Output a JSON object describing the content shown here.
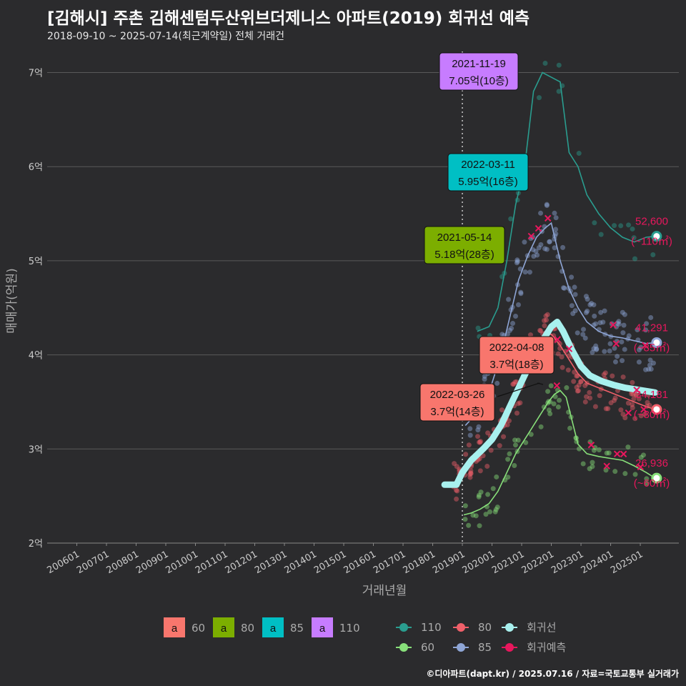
{
  "header": {
    "title": "[김해시] 주촌 김해센텀두산위브더제니스 아파트(2019) 회귀선 예측",
    "subtitle": "2018-09-10 ~ 2025-07-14(최근계약일) 전체 거래건"
  },
  "credit": "©디아파트(dapt.kr) / 2025.07.16 / 자료=국토교통부 실거래가",
  "colors": {
    "background": "#2b2b2d",
    "grid": "#5a5a5a",
    "s60": "#88e07a",
    "s80": "#f0606a",
    "s85": "#8fa6d6",
    "s110": "#2a9d8f",
    "regression": "#a8f0ee",
    "forecast": "#e8175d",
    "box60": "#f8766d",
    "box80": "#7cae00",
    "box85": "#00bfc4",
    "box110": "#c77cff"
  },
  "chart_data": {
    "type": "line",
    "title": "[김해시] 주촌 김해센텀두산위브더제니스 아파트(2019) 회귀선 예측",
    "xlabel": "거래년월",
    "ylabel": "매매가(억원)",
    "x_ticks": [
      "200601",
      "200701",
      "200801",
      "200901",
      "201001",
      "201101",
      "201201",
      "201301",
      "201401",
      "201501",
      "201601",
      "201701",
      "201801",
      "201901",
      "202001",
      "202101",
      "202201",
      "202301",
      "202401",
      "202501"
    ],
    "y_ticks": [
      "2억",
      "3억",
      "4억",
      "5억",
      "6억",
      "7억"
    ],
    "ylim": [
      2,
      7.3
    ],
    "xlim": [
      2005.0,
      2026.3
    ],
    "grid": true,
    "vline_date": "2019-01",
    "series": [
      {
        "name": "60",
        "points": [
          [
            2019.05,
            2.3
          ],
          [
            2019.3,
            2.32
          ],
          [
            2019.6,
            2.36
          ],
          [
            2019.9,
            2.42
          ],
          [
            2020.2,
            2.55
          ],
          [
            2020.5,
            2.75
          ],
          [
            2020.8,
            2.95
          ],
          [
            2021.0,
            3.05
          ],
          [
            2021.3,
            3.2
          ],
          [
            2021.6,
            3.35
          ],
          [
            2021.9,
            3.5
          ],
          [
            2022.1,
            3.58
          ],
          [
            2022.3,
            3.62
          ],
          [
            2022.5,
            3.55
          ],
          [
            2022.7,
            3.3
          ],
          [
            2022.9,
            3.05
          ],
          [
            2023.2,
            2.95
          ],
          [
            2023.6,
            2.92
          ],
          [
            2024.0,
            2.9
          ],
          [
            2024.4,
            2.88
          ],
          [
            2024.8,
            2.82
          ],
          [
            2025.2,
            2.75
          ],
          [
            2025.5,
            2.69
          ]
        ]
      },
      {
        "name": "80",
        "points": [
          [
            2018.7,
            2.62
          ],
          [
            2019.0,
            2.8
          ],
          [
            2019.3,
            2.9
          ],
          [
            2019.6,
            2.98
          ],
          [
            2019.9,
            3.05
          ],
          [
            2020.2,
            3.15
          ],
          [
            2020.5,
            3.3
          ],
          [
            2020.8,
            3.55
          ],
          [
            2021.1,
            3.85
          ],
          [
            2021.4,
            4.1
          ],
          [
            2021.7,
            4.2
          ],
          [
            2022.0,
            4.22
          ],
          [
            2022.3,
            4.1
          ],
          [
            2022.6,
            3.95
          ],
          [
            2022.9,
            3.8
          ],
          [
            2023.2,
            3.7
          ],
          [
            2023.6,
            3.65
          ],
          [
            2024.0,
            3.6
          ],
          [
            2024.4,
            3.55
          ],
          [
            2024.8,
            3.5
          ],
          [
            2025.2,
            3.45
          ],
          [
            2025.5,
            3.42
          ]
        ]
      },
      {
        "name": "85",
        "points": [
          [
            2019.1,
            3.25
          ],
          [
            2019.4,
            3.35
          ],
          [
            2019.7,
            3.5
          ],
          [
            2020.0,
            3.7
          ],
          [
            2020.3,
            4.0
          ],
          [
            2020.6,
            4.4
          ],
          [
            2020.9,
            4.8
          ],
          [
            2021.2,
            5.05
          ],
          [
            2021.5,
            5.25
          ],
          [
            2021.8,
            5.35
          ],
          [
            2022.0,
            5.4
          ],
          [
            2022.3,
            5.0
          ],
          [
            2022.6,
            4.7
          ],
          [
            2022.9,
            4.5
          ],
          [
            2023.2,
            4.35
          ],
          [
            2023.6,
            4.25
          ],
          [
            2024.0,
            4.2
          ],
          [
            2024.4,
            4.18
          ],
          [
            2024.8,
            4.15
          ],
          [
            2025.2,
            4.12
          ],
          [
            2025.5,
            4.13
          ]
        ]
      },
      {
        "name": "110",
        "points": [
          [
            2019.5,
            4.25
          ],
          [
            2019.9,
            4.3
          ],
          [
            2020.2,
            4.5
          ],
          [
            2020.5,
            5.0
          ],
          [
            2020.8,
            5.6
          ],
          [
            2021.1,
            6.0
          ],
          [
            2021.4,
            6.8
          ],
          [
            2021.7,
            7.0
          ],
          [
            2022.0,
            6.95
          ],
          [
            2022.3,
            6.9
          ],
          [
            2022.6,
            6.15
          ],
          [
            2022.9,
            6.0
          ],
          [
            2023.2,
            5.7
          ],
          [
            2023.6,
            5.5
          ],
          [
            2024.0,
            5.35
          ],
          [
            2024.4,
            5.25
          ],
          [
            2024.8,
            5.2
          ],
          [
            2025.2,
            5.25
          ],
          [
            2025.5,
            5.26
          ]
        ]
      },
      {
        "name": "회귀선",
        "points": [
          [
            2018.4,
            2.62
          ],
          [
            2018.8,
            2.62
          ],
          [
            2019.0,
            2.75
          ],
          [
            2019.3,
            2.88
          ],
          [
            2019.7,
            3.0
          ],
          [
            2020.0,
            3.1
          ],
          [
            2020.3,
            3.25
          ],
          [
            2020.6,
            3.45
          ],
          [
            2020.9,
            3.65
          ],
          [
            2021.2,
            3.85
          ],
          [
            2021.5,
            4.05
          ],
          [
            2021.8,
            4.2
          ],
          [
            2022.0,
            4.3
          ],
          [
            2022.2,
            4.35
          ],
          [
            2022.4,
            4.25
          ],
          [
            2022.7,
            4.05
          ],
          [
            2023.0,
            3.88
          ],
          [
            2023.3,
            3.78
          ],
          [
            2023.7,
            3.72
          ],
          [
            2024.1,
            3.68
          ],
          [
            2024.5,
            3.65
          ],
          [
            2024.9,
            3.63
          ],
          [
            2025.3,
            3.61
          ],
          [
            2025.5,
            3.6
          ]
        ]
      }
    ],
    "forecast_points": [
      {
        "size": "110",
        "value": 5.26,
        "label": "52,600",
        "sub": "(~110㎡)"
      },
      {
        "size": "85",
        "value": 4.13,
        "label": "41,291",
        "sub": "(~85㎡)"
      },
      {
        "size": "80",
        "value": 3.42,
        "label": "34,181",
        "sub": "(~80㎡)"
      },
      {
        "size": "60",
        "value": 2.69,
        "label": "26,936",
        "sub": "(~60㎡)"
      }
    ],
    "annotations": [
      {
        "date": "2021-11-19",
        "text": "7.05억(10층)",
        "size": "110"
      },
      {
        "date": "2022-03-11",
        "text": "5.95억(16층)",
        "size": "85"
      },
      {
        "date": "2021-05-14",
        "text": "5.18억(28층)",
        "size": "80"
      },
      {
        "date": "2022-04-08",
        "text": "3.7억(18층)",
        "size": "60"
      },
      {
        "date": "2022-03-26",
        "text": "3.7억(14층)",
        "size": "60"
      }
    ],
    "legend_sizes": [
      {
        "glyph": "a",
        "label": "60"
      },
      {
        "glyph": "a",
        "label": "80"
      },
      {
        "glyph": "a",
        "label": "85"
      },
      {
        "glyph": "a",
        "label": "110"
      }
    ],
    "legend_lines": [
      {
        "label": "110"
      },
      {
        "label": "80"
      },
      {
        "label": "회귀선"
      },
      {
        "label": "60"
      },
      {
        "label": "85"
      },
      {
        "label": "회귀예측"
      }
    ]
  }
}
